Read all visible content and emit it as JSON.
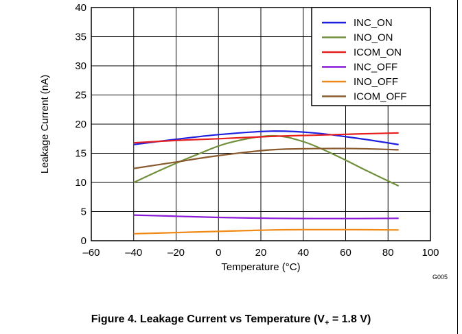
{
  "caption": {
    "prefix": "Figure 4. Leakage Current vs Temperature (V",
    "subscript": "+",
    "suffix": " = 1.8 V)"
  },
  "code": "G005",
  "chart_data": {
    "type": "line",
    "xlabel": "Temperature (°C)",
    "ylabel": "Leakage Current (nA)",
    "xlim": [
      -60,
      100
    ],
    "ylim": [
      0,
      40
    ],
    "xticks": [
      -60,
      -40,
      -20,
      0,
      20,
      40,
      60,
      80,
      100
    ],
    "yticks": [
      0,
      5,
      10,
      15,
      20,
      25,
      30,
      35,
      40
    ],
    "xtick_labels": [
      "–60",
      "–40",
      "–20",
      "0",
      "20",
      "40",
      "60",
      "80",
      "100"
    ],
    "grid": true,
    "legend_position": "top-right",
    "series": [
      {
        "name": "INC_ON",
        "color": "#1f1fe0",
        "x": [
          -40,
          -20,
          0,
          25,
          45,
          65,
          85
        ],
        "y": [
          16.5,
          17.4,
          18.2,
          18.8,
          18.5,
          17.6,
          16.5
        ]
      },
      {
        "name": "INO_ON",
        "color": "#6f8f3a",
        "x": [
          -40,
          -25,
          -10,
          5,
          25,
          40,
          55,
          70,
          85
        ],
        "y": [
          10,
          12.5,
          14.8,
          16.8,
          18.0,
          17.0,
          14.7,
          12.0,
          9.4
        ]
      },
      {
        "name": "ICOM_ON",
        "color": "#e61e1e",
        "x": [
          -40,
          -20,
          0,
          25,
          45,
          65,
          85
        ],
        "y": [
          16.8,
          17.2,
          17.5,
          17.9,
          18.1,
          18.3,
          18.5
        ]
      },
      {
        "name": "INC_OFF",
        "color": "#8a1ad8",
        "x": [
          -40,
          -20,
          0,
          25,
          45,
          65,
          85
        ],
        "y": [
          4.4,
          4.2,
          4.0,
          3.85,
          3.8,
          3.8,
          3.85
        ]
      },
      {
        "name": "INO_OFF",
        "color": "#f08a14",
        "x": [
          -40,
          -20,
          0,
          25,
          45,
          65,
          85
        ],
        "y": [
          1.2,
          1.4,
          1.6,
          1.85,
          1.9,
          1.9,
          1.85
        ]
      },
      {
        "name": "ICOM_OFF",
        "color": "#8a5a2e",
        "x": [
          -40,
          -20,
          0,
          25,
          45,
          65,
          85
        ],
        "y": [
          12.4,
          13.5,
          14.6,
          15.6,
          15.8,
          15.8,
          15.6
        ]
      }
    ]
  }
}
